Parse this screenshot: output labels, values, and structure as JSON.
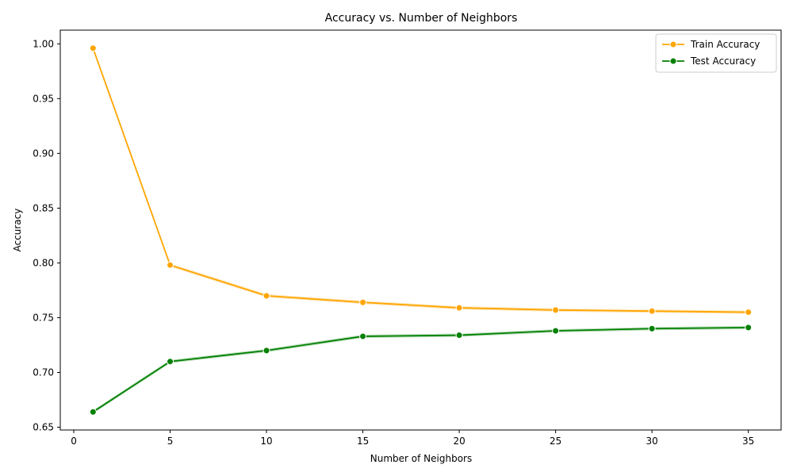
{
  "chart_data": {
    "type": "line",
    "title": "Accuracy vs. Number of Neighbors",
    "xlabel": "Number of Neighbors",
    "ylabel": "Accuracy",
    "x": [
      1,
      5,
      10,
      15,
      20,
      25,
      30,
      35
    ],
    "series": [
      {
        "name": "Train Accuracy",
        "color": "#ffa500",
        "values": [
          0.996,
          0.798,
          0.77,
          0.764,
          0.759,
          0.757,
          0.756,
          0.755
        ]
      },
      {
        "name": "Test Accuracy",
        "color": "#008000",
        "values": [
          0.664,
          0.71,
          0.72,
          0.733,
          0.734,
          0.738,
          0.74,
          0.741
        ]
      }
    ],
    "xlim": [
      -0.7,
      36.7
    ],
    "ylim": [
      0.6475,
      1.0125
    ],
    "x_ticks": [
      0,
      5,
      10,
      15,
      20,
      25,
      30,
      35
    ],
    "y_ticks": [
      0.65,
      0.7,
      0.75,
      0.8,
      0.85,
      0.9,
      0.95,
      1.0
    ],
    "x_tick_labels": [
      "0",
      "5",
      "10",
      "15",
      "20",
      "25",
      "30",
      "35"
    ],
    "y_tick_labels": [
      "0.65",
      "0.70",
      "0.75",
      "0.80",
      "0.85",
      "0.90",
      "0.95",
      "1.00"
    ],
    "grid": false,
    "legend_position": "top-right"
  }
}
